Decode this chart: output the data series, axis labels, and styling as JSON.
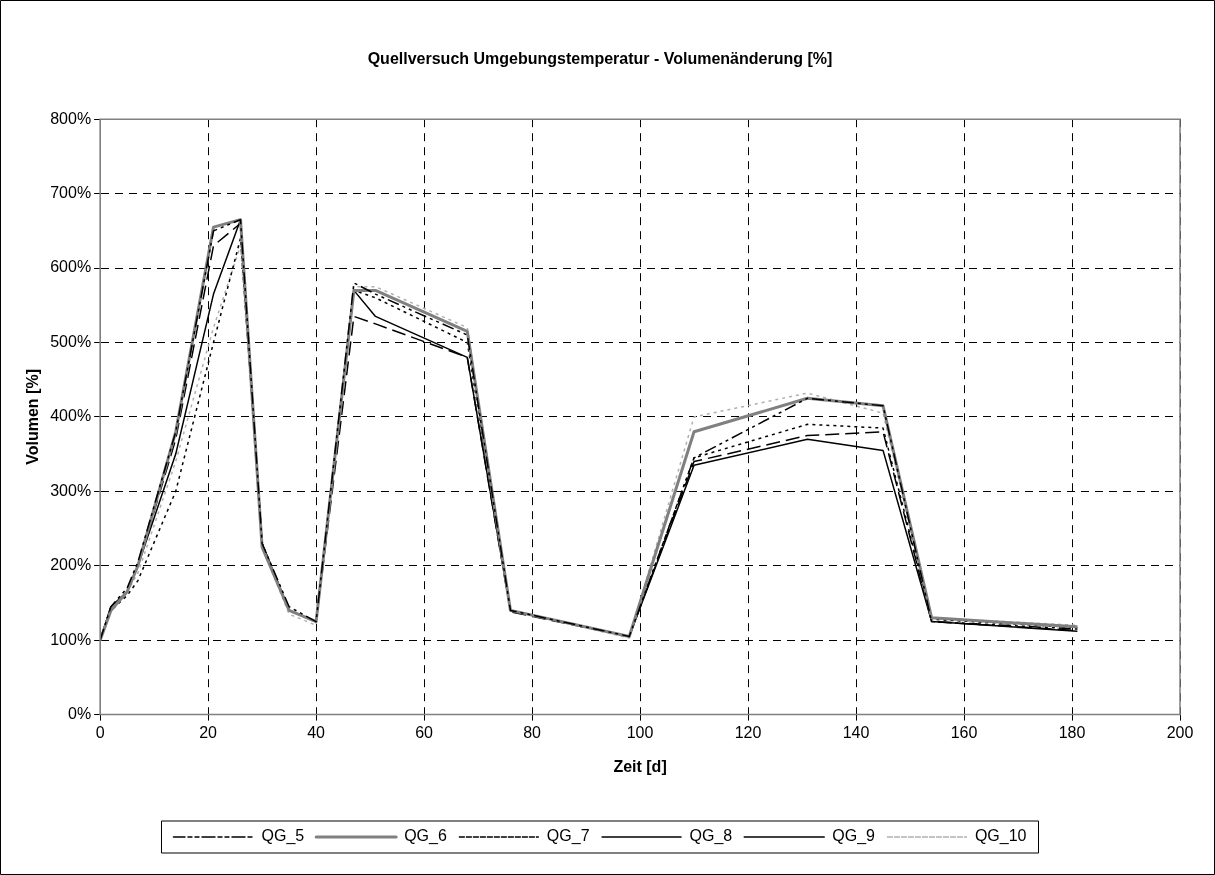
{
  "chart_data": {
    "type": "line",
    "title": "Quellversuch Umgebungstemperatur - Volumenänderung [%]",
    "xlabel": "Zeit [d]",
    "ylabel": "Volumen [%]",
    "x": [
      0,
      2,
      5,
      7,
      14,
      21,
      26,
      30,
      35,
      40,
      47,
      51,
      68,
      76,
      98,
      110,
      131,
      145,
      154,
      181
    ],
    "series": [
      {
        "name": "QG_5",
        "color": "#000000",
        "line_style": "dashdot",
        "values": [
          100,
          145,
          170,
          205,
          380,
          650,
          665,
          230,
          145,
          125,
          580,
          565,
          510,
          140,
          105,
          345,
          425,
          415,
          125,
          115
        ]
      },
      {
        "name": "QG_6",
        "color": "#808080",
        "line_style": "solid",
        "values": [
          100,
          140,
          165,
          200,
          380,
          655,
          665,
          225,
          140,
          125,
          570,
          570,
          515,
          140,
          105,
          380,
          425,
          415,
          130,
          118
        ]
      },
      {
        "name": "QG_7",
        "color": "#000000",
        "line_style": "dotted",
        "values": [
          100,
          140,
          160,
          180,
          300,
          500,
          640,
          230,
          140,
          125,
          570,
          560,
          500,
          140,
          105,
          345,
          390,
          385,
          128,
          117
        ]
      },
      {
        "name": "QG_8",
        "color": "#000000",
        "line_style": "dashed",
        "values": [
          100,
          145,
          165,
          200,
          370,
          630,
          660,
          230,
          140,
          125,
          535,
          525,
          480,
          138,
          105,
          340,
          375,
          380,
          125,
          113
        ]
      },
      {
        "name": "QG_9",
        "color": "#000000",
        "line_style": "solid",
        "values": [
          100,
          145,
          165,
          200,
          350,
          565,
          665,
          230,
          140,
          125,
          570,
          535,
          480,
          140,
          105,
          335,
          370,
          355,
          125,
          112
        ]
      },
      {
        "name": "QG_10",
        "color": "#b0b0b0",
        "line_style": "dotted",
        "values": [
          100,
          140,
          165,
          190,
          340,
          520,
          630,
          225,
          135,
          120,
          575,
          575,
          520,
          140,
          103,
          400,
          432,
          405,
          130,
          120
        ]
      }
    ],
    "xlim": [
      0,
      200
    ],
    "xticks": [
      0,
      20,
      40,
      60,
      80,
      100,
      120,
      140,
      160,
      180,
      200
    ],
    "ylim": [
      0,
      800
    ],
    "yticks": [
      {
        "value": 0,
        "label": "0%"
      },
      {
        "value": 100,
        "label": "100%"
      },
      {
        "value": 200,
        "label": "200%"
      },
      {
        "value": 300,
        "label": "300%"
      },
      {
        "value": 400,
        "label": "400%"
      },
      {
        "value": 500,
        "label": "500%"
      },
      {
        "value": 600,
        "label": "600%"
      },
      {
        "value": 700,
        "label": "700%"
      },
      {
        "value": 800,
        "label": "800%"
      }
    ],
    "grid": true,
    "legend": "bottom",
    "marker": "none"
  }
}
